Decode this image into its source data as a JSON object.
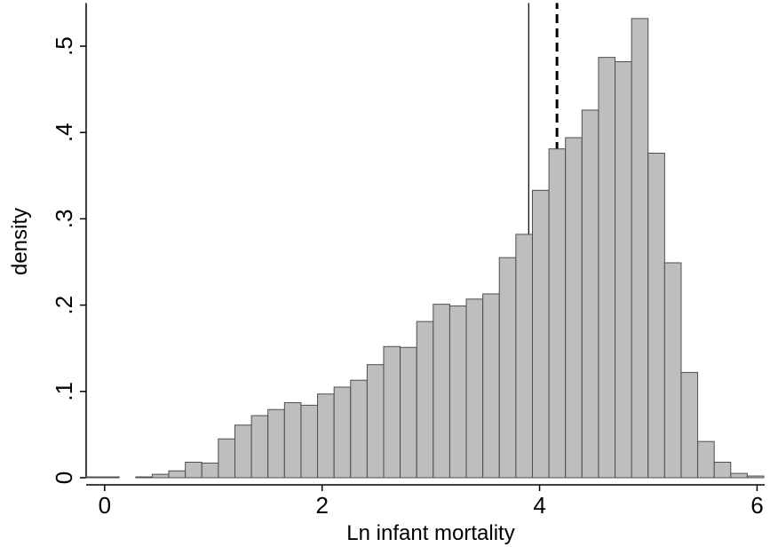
{
  "chart_data": {
    "type": "histogram",
    "xlabel": "Ln infant mortality",
    "ylabel": "density",
    "bins": [
      -0.17,
      -0.018,
      0.134,
      0.286,
      0.438,
      0.59,
      0.742,
      0.894,
      1.046,
      1.198,
      1.35,
      1.502,
      1.654,
      1.806,
      1.958,
      2.11,
      2.262,
      2.414,
      2.566,
      2.718,
      2.87,
      3.022,
      3.174,
      3.326,
      3.478,
      3.63,
      3.782,
      3.934,
      4.086,
      4.238,
      4.39,
      4.542,
      4.694,
      4.846,
      4.998,
      5.15,
      5.302,
      5.454,
      5.606,
      5.758,
      5.91,
      6.062
    ],
    "values": [
      0.001,
      0.001,
      0,
      0.001,
      0.004,
      0.008,
      0.018,
      0.017,
      0.045,
      0.061,
      0.072,
      0.079,
      0.087,
      0.084,
      0.097,
      0.105,
      0.113,
      0.131,
      0.152,
      0.151,
      0.181,
      0.201,
      0.199,
      0.207,
      0.213,
      0.255,
      0.282,
      0.333,
      0.381,
      0.394,
      0.426,
      0.487,
      0.482,
      0.532,
      0.376,
      0.249,
      0.122,
      0.042,
      0.018,
      0.005,
      0.002
    ],
    "color": "#bebebe",
    "edge_color": "#4d4d4d",
    "vlines": [
      {
        "value": 3.9,
        "style": "solid"
      },
      {
        "value": 4.16,
        "style": "dashed"
      }
    ],
    "xlim": [
      -0.17,
      6.07
    ],
    "ylim": [
      0,
      0.55
    ],
    "xticks": [
      0,
      2,
      4,
      6
    ],
    "yticks": [
      0,
      {
        "value": 0.1,
        "label": ".1"
      },
      {
        "value": 0.2,
        "label": ".2"
      },
      {
        "value": 0.3,
        "label": ".3"
      },
      {
        "value": 0.4,
        "label": ".4"
      },
      {
        "value": 0.5,
        "label": ".5"
      }
    ]
  }
}
